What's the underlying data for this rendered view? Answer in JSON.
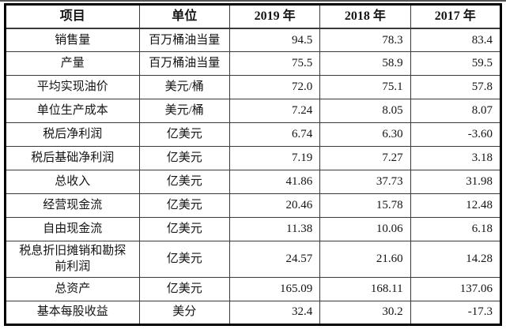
{
  "table": {
    "headers": [
      "项目",
      "单位",
      "2019 年",
      "2018 年",
      "2017 年"
    ],
    "rows": [
      {
        "item": "销售量",
        "unit": "百万桶油当量",
        "v2019": "94.5",
        "v2018": "78.3",
        "v2017": "83.4"
      },
      {
        "item": "产量",
        "unit": "百万桶油当量",
        "v2019": "75.5",
        "v2018": "58.9",
        "v2017": "59.5"
      },
      {
        "item": "平均实现油价",
        "unit": "美元/桶",
        "v2019": "72.0",
        "v2018": "75.1",
        "v2017": "57.8"
      },
      {
        "item": "单位生产成本",
        "unit": "美元/桶",
        "v2019": "7.24",
        "v2018": "8.05",
        "v2017": "8.07"
      },
      {
        "item": "税后净利润",
        "unit": "亿美元",
        "v2019": "6.74",
        "v2018": "6.30",
        "v2017": "-3.60"
      },
      {
        "item": "税后基础净利润",
        "unit": "亿美元",
        "v2019": "7.19",
        "v2018": "7.27",
        "v2017": "3.18"
      },
      {
        "item": "总收入",
        "unit": "亿美元",
        "v2019": "41.86",
        "v2018": "37.73",
        "v2017": "31.98"
      },
      {
        "item": "经营现金流",
        "unit": "亿美元",
        "v2019": "20.46",
        "v2018": "15.78",
        "v2017": "12.48"
      },
      {
        "item": "自由现金流",
        "unit": "亿美元",
        "v2019": "11.38",
        "v2018": "10.06",
        "v2017": "6.18"
      },
      {
        "item": "税息折旧摊销和勘探\n前利润",
        "unit": "亿美元",
        "v2019": "24.57",
        "v2018": "21.60",
        "v2017": "14.28"
      },
      {
        "item": "总资产",
        "unit": "亿美元",
        "v2019": "165.09",
        "v2018": "168.11",
        "v2017": "137.06"
      },
      {
        "item": "基本每股收益",
        "unit": "美分",
        "v2019": "32.4",
        "v2018": "30.2",
        "v2017": "-17.3"
      }
    ],
    "colors": {
      "outer_border": "#000000",
      "inner_border": "#3a3a3a",
      "text": "#141414",
      "background": "#ffffff"
    }
  }
}
